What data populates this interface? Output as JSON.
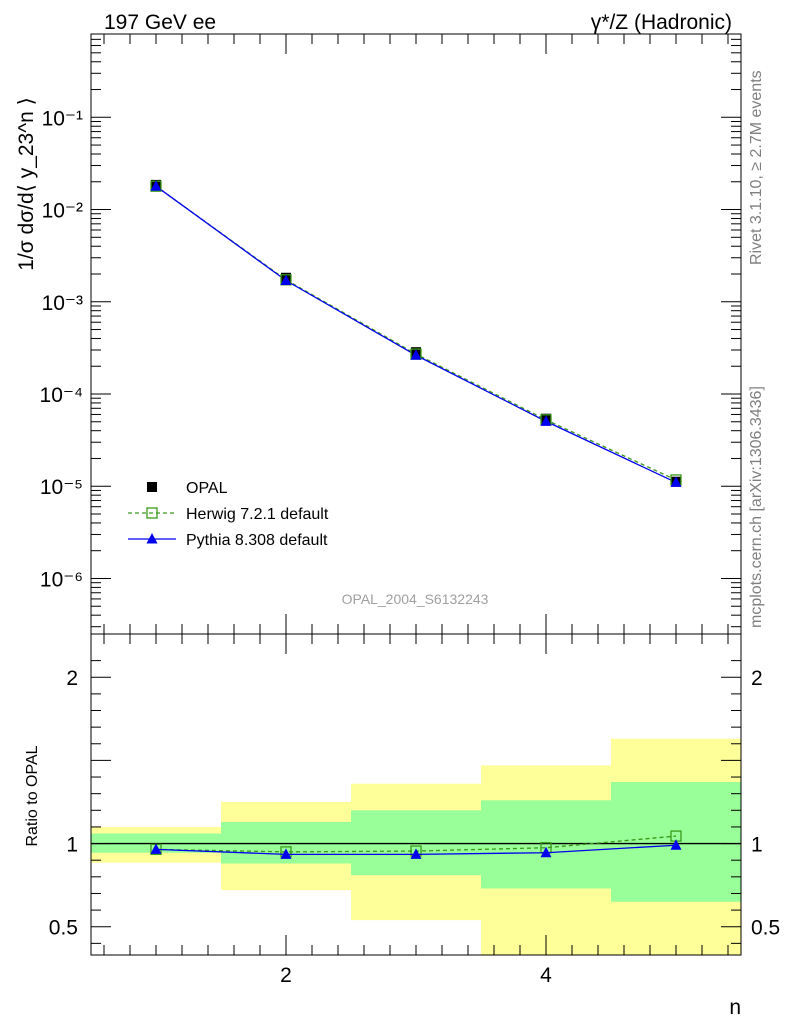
{
  "header": {
    "left": "197 GeV ee",
    "right": "γ*/Z (Hadronic)"
  },
  "side_labels": {
    "rivet": "Rivet 3.1.10, ≥ 2.7M events",
    "mcplots": "mcplots.cern.ch [arXiv:1306.3436]"
  },
  "watermark": "OPAL_2004_S6132243",
  "chart_data": [
    {
      "type": "line",
      "panel": "main",
      "ylabel": "1/σ dσ/d⟨ y_23^n ⟩",
      "xlabel": "n",
      "yscale": "log",
      "ylim": [
        2.5e-07,
        0.8
      ],
      "xlim": [
        0.5,
        5.5
      ],
      "y_ticks": [
        {
          "v": 1e-06,
          "label": "10⁻⁶"
        },
        {
          "v": 1e-05,
          "label": "10⁻⁵"
        },
        {
          "v": 0.0001,
          "label": "10⁻⁴"
        },
        {
          "v": 0.001,
          "label": "10⁻³"
        },
        {
          "v": 0.01,
          "label": "10⁻²"
        },
        {
          "v": 0.1,
          "label": "10⁻¹"
        }
      ],
      "x": [
        1,
        2,
        3,
        4,
        5
      ],
      "series": [
        {
          "name": "OPAL",
          "values": [
            0.0185,
            0.00182,
            0.000284,
            5.4e-05,
            1.12e-05
          ],
          "color": "#000000",
          "marker": "square-filled"
        },
        {
          "name": "Herwig 7.2.1 default",
          "values": [
            0.0179,
            0.00173,
            0.000271,
            5.25e-05,
            1.17e-05
          ],
          "color": "#3a9a1a",
          "marker": "square-open",
          "dashed": true
        },
        {
          "name": "Pythia 8.308 default",
          "values": [
            0.0179,
            0.0017,
            0.000263,
            5.05e-05,
            1.1e-05
          ],
          "color": "#0000ee",
          "marker": "triangle"
        }
      ],
      "legend": "lower-left"
    },
    {
      "type": "line",
      "panel": "ratio",
      "ylabel": "Ratio to OPAL",
      "xlabel": "n",
      "ylim": [
        0.33,
        2.26
      ],
      "xlim": [
        0.5,
        5.5
      ],
      "y_ticks": [
        {
          "v": 0.5,
          "label": "0.5"
        },
        {
          "v": 1,
          "label": "1"
        },
        {
          "v": 2,
          "label": "2"
        }
      ],
      "x_ticks": [
        {
          "v": 2,
          "label": "2"
        },
        {
          "v": 4,
          "label": "4"
        }
      ],
      "bands": [
        {
          "x0": 0.5,
          "x1": 1.5,
          "inner": [
            0.945,
            1.06
          ],
          "outer": [
            0.885,
            1.1
          ]
        },
        {
          "x0": 1.5,
          "x1": 2.5,
          "inner": [
            0.88,
            1.13
          ],
          "outer": [
            0.72,
            1.25
          ]
        },
        {
          "x0": 2.5,
          "x1": 3.5,
          "inner": [
            0.81,
            1.2
          ],
          "outer": [
            0.54,
            1.36
          ]
        },
        {
          "x0": 3.5,
          "x1": 4.5,
          "inner": [
            0.73,
            1.26
          ],
          "outer": [
            0.33,
            1.47
          ]
        },
        {
          "x0": 4.5,
          "x1": 5.5,
          "inner": [
            0.65,
            1.37
          ],
          "outer": [
            0.33,
            1.63
          ]
        }
      ],
      "x": [
        1,
        2,
        3,
        4,
        5
      ],
      "series": [
        {
          "name": "Herwig 7.2.1 default",
          "values": [
            0.965,
            0.95,
            0.955,
            0.975,
            1.045
          ],
          "color": "#3a9a1a",
          "marker": "square-open",
          "dashed": true
        },
        {
          "name": "Pythia 8.308 default",
          "values": [
            0.965,
            0.935,
            0.935,
            0.945,
            0.99
          ],
          "color": "#0000ee",
          "marker": "triangle"
        }
      ]
    }
  ]
}
